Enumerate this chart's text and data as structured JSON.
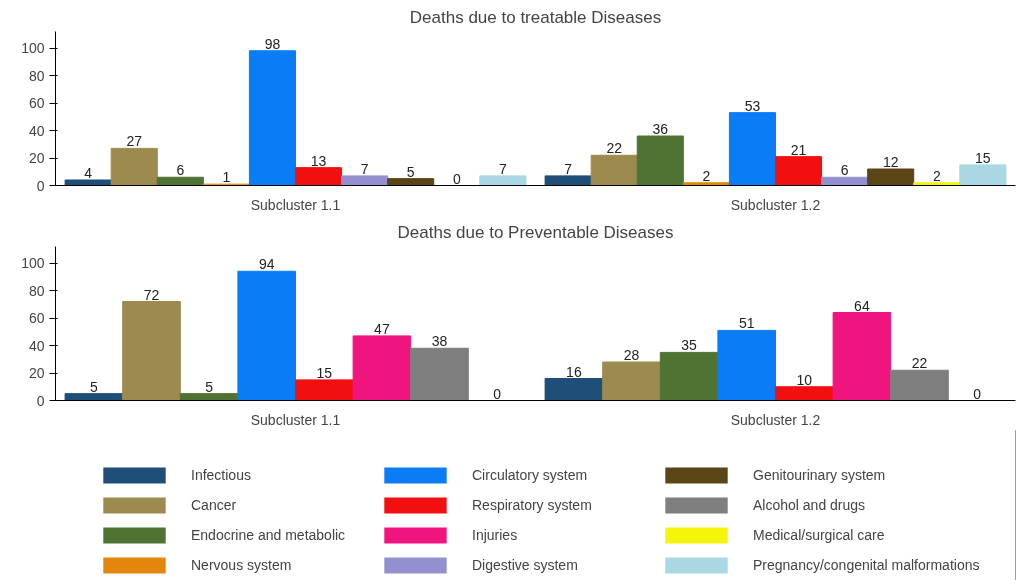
{
  "chart_data": [
    {
      "type": "bar",
      "title": "Deaths due to treatable Diseases",
      "categories": [
        "Subcluster 1.1",
        "Subcluster 1.2"
      ],
      "ylim": [
        0,
        112
      ],
      "yticks": [
        0,
        20,
        40,
        60,
        80,
        100
      ],
      "grid": false,
      "legend": "bottom",
      "data_labels": true,
      "series": [
        {
          "name": "Infectious",
          "color": "#1f4e79",
          "values": [
            4,
            7
          ]
        },
        {
          "name": "Cancer",
          "color": "#9c8a4e",
          "values": [
            27,
            22
          ]
        },
        {
          "name": "Endocrine and metabolic",
          "color": "#4f7332",
          "values": [
            6,
            36
          ]
        },
        {
          "name": "Nervous system",
          "color": "#e3860e",
          "values": [
            1,
            2
          ]
        },
        {
          "name": "Circulatory system",
          "color": "#0a7cf6",
          "values": [
            98,
            53
          ]
        },
        {
          "name": "Respiratory system",
          "color": "#f20f0f",
          "values": [
            13,
            21
          ]
        },
        {
          "name": "Digestive system",
          "color": "#9490d0",
          "values": [
            7,
            6
          ]
        },
        {
          "name": "Genitourinary system",
          "color": "#5a4517",
          "values": [
            5,
            12
          ]
        },
        {
          "name": "Medical/surgical care",
          "color": "#f5f50a",
          "values": [
            0,
            2
          ]
        },
        {
          "name": "Pregnancy/congenital malformations",
          "color": "#a9d7e3",
          "values": [
            7,
            15
          ]
        }
      ]
    },
    {
      "type": "bar",
      "title": "Deaths due to Preventable Diseases",
      "categories": [
        "Subcluster 1.1",
        "Subcluster 1.2"
      ],
      "ylim": [
        0,
        112
      ],
      "yticks": [
        0,
        20,
        40,
        60,
        80,
        100
      ],
      "grid": false,
      "legend": "bottom",
      "data_labels": true,
      "series": [
        {
          "name": "Infectious",
          "color": "#1f4e79",
          "values": [
            5,
            16
          ]
        },
        {
          "name": "Cancer",
          "color": "#9c8a4e",
          "values": [
            72,
            28
          ]
        },
        {
          "name": "Endocrine and metabolic",
          "color": "#4f7332",
          "values": [
            5,
            35
          ]
        },
        {
          "name": "Nervous system",
          "color": "#e3860e",
          "values": [
            null,
            null
          ]
        },
        {
          "name": "Circulatory system",
          "color": "#0a7cf6",
          "values": [
            94,
            51
          ]
        },
        {
          "name": "Respiratory system",
          "color": "#f20f0f",
          "values": [
            15,
            10
          ]
        },
        {
          "name": "Injuries",
          "color": "#f0147f",
          "values": [
            47,
            64
          ]
        },
        {
          "name": "Digestive system",
          "color": "#9490d0",
          "values": [
            null,
            null
          ]
        },
        {
          "name": "Genitourinary system",
          "color": "#5a4517",
          "values": [
            null,
            null
          ]
        },
        {
          "name": "Alcohol and drugs",
          "color": "#7f7f7f",
          "values": [
            38,
            22
          ]
        },
        {
          "name": "Medical/surgical care",
          "color": "#f5f50a",
          "values": [
            0,
            0
          ]
        },
        {
          "name": "Pregnancy/congenital malformations",
          "color": "#a9d7e3",
          "values": [
            null,
            null
          ]
        }
      ]
    }
  ]
}
